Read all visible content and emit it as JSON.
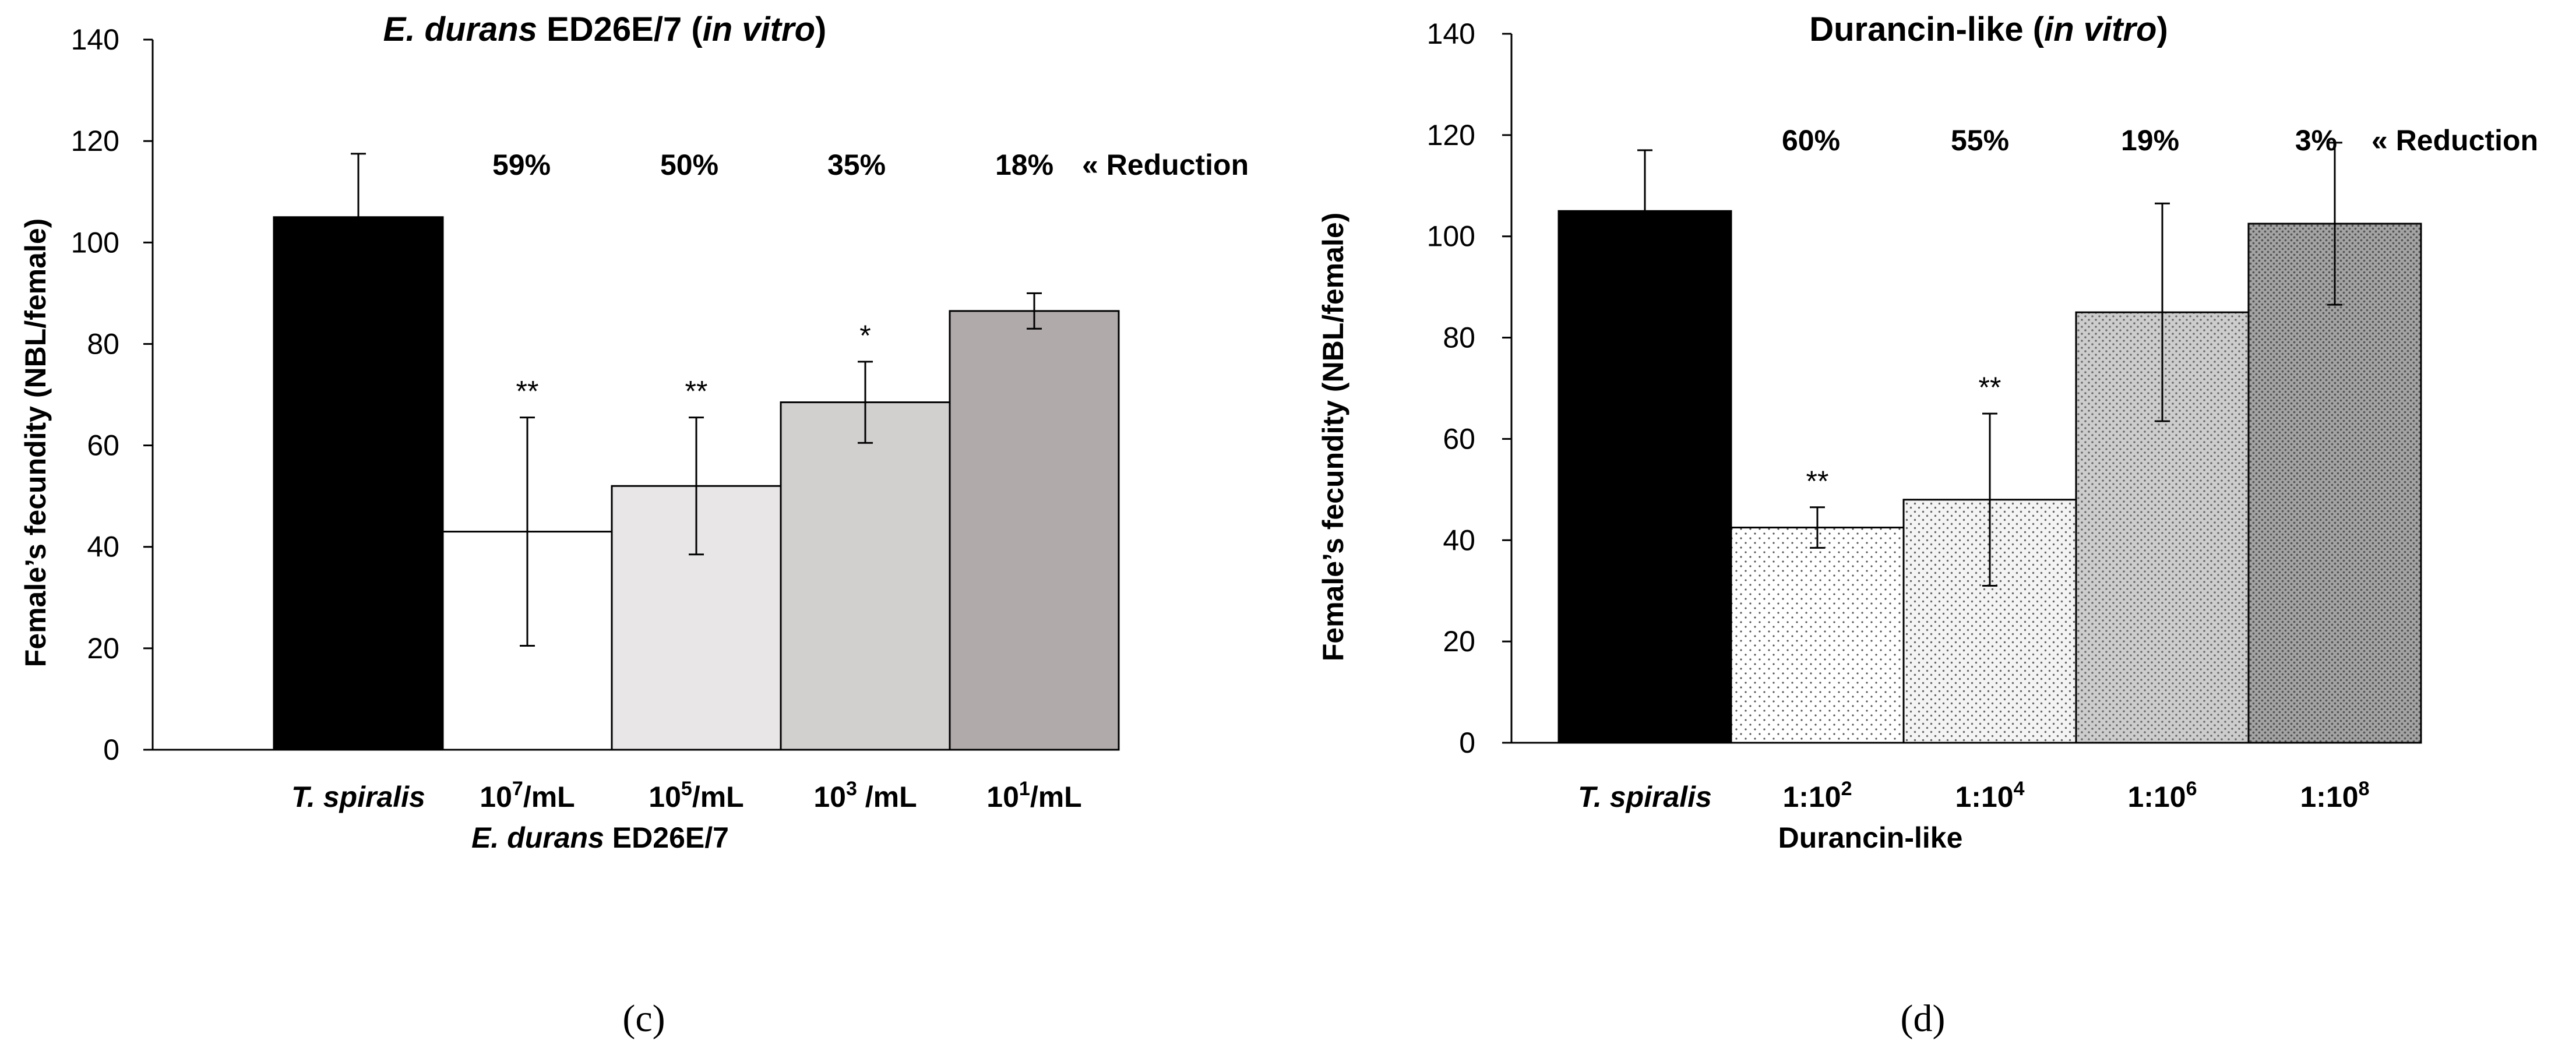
{
  "chart_data": [
    {
      "type": "bar",
      "panel_label": "(c)",
      "title": {
        "italic": "E. durans",
        "plain": " ED26E/7 (",
        "italic2": "in vitro",
        "end": ")"
      },
      "ylabel": "Female’s fecundity (NBL/female)",
      "ylim": [
        0,
        140
      ],
      "yticks": [
        0,
        20,
        40,
        60,
        80,
        100,
        120,
        140
      ],
      "categories": [
        {
          "main": "T. spiralis",
          "italic": true
        },
        {
          "main": "10",
          "sup": "7",
          "rest": "/mL"
        },
        {
          "main": "10",
          "sup": "5",
          "rest": "/mL"
        },
        {
          "main": "10",
          "sup": "3",
          "rest": " /mL"
        },
        {
          "main": "10",
          "sup": "1",
          "rest": "/mL"
        }
      ],
      "group_label": {
        "italic": "E. durans",
        "plain": " ED26E/7"
      },
      "values": [
        105,
        43,
        52,
        68.5,
        86.5
      ],
      "errors": [
        12.5,
        22.5,
        13.5,
        8,
        3.5
      ],
      "significance": [
        "",
        "**",
        "**",
        "*",
        ""
      ],
      "reductions": [
        "",
        "59%",
        "50%",
        "35%",
        "18%"
      ],
      "reduction_label": "« Reduction",
      "colors": [
        "#000000",
        "#ffffff",
        "#e8e6e6",
        "#d2cfcf",
        "#b0abaa"
      ],
      "patterns": [
        "solid",
        "solid",
        "solid",
        "solid",
        "solid"
      ]
    },
    {
      "type": "bar",
      "panel_label": "(d)",
      "title": {
        "plain": "Durancin-like (",
        "italic": "in vitro",
        "end": ")"
      },
      "ylabel": "Female’s fecundity (NBL/female)",
      "ylim": [
        0,
        140
      ],
      "yticks": [
        0,
        20,
        40,
        60,
        80,
        100,
        120,
        140
      ],
      "categories": [
        {
          "main": "T. spiralis",
          "italic": true
        },
        {
          "main": "1:10",
          "sup": "2"
        },
        {
          "main": "1:10",
          "sup": "4"
        },
        {
          "main": "1:10",
          "sup": "6"
        },
        {
          "main": "1:10",
          "sup": "8"
        }
      ],
      "group_label": {
        "plain": "Durancin-like"
      },
      "values": [
        105,
        42.5,
        48,
        85,
        102.5
      ],
      "errors": [
        12,
        4,
        17,
        21.5,
        16
      ],
      "significance": [
        "",
        "**",
        "**",
        "",
        ""
      ],
      "reductions": [
        "",
        "60%",
        "55%",
        "19%",
        "3%"
      ],
      "reduction_label": "«  Reduction",
      "colors": [
        "#000000",
        "#ffffff",
        "#f2f2f2",
        "#cfcfcf",
        "#9e9e9e"
      ],
      "patterns": [
        "solid",
        "dots-sparse",
        "dots-light",
        "dots-medium",
        "dots-dense"
      ]
    }
  ]
}
